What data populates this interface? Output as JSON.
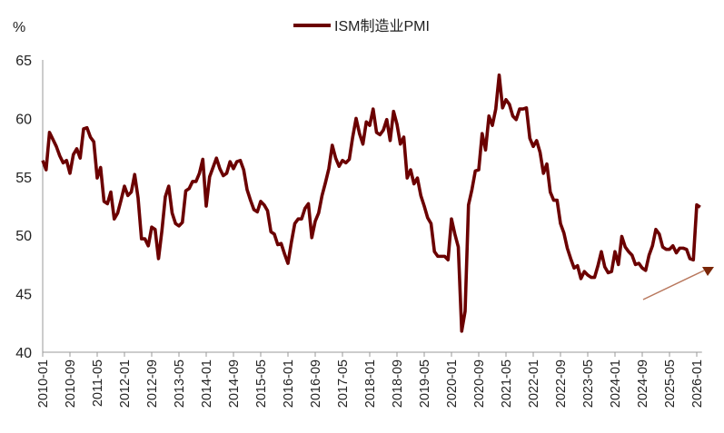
{
  "chart_data": {
    "type": "line",
    "title": "",
    "ylabel": "%",
    "xlabel": "",
    "ylim": [
      40,
      65
    ],
    "yticks": [
      "40",
      "45",
      "50",
      "55",
      "60",
      "65"
    ],
    "grid": false,
    "legend_position": "top-center",
    "xtick_labels": [
      "2010-01",
      "2010-09",
      "2011-05",
      "2012-01",
      "2012-09",
      "2013-05",
      "2014-01",
      "2014-09",
      "2015-05",
      "2016-01",
      "2016-09",
      "2017-05",
      "2018-01",
      "2018-09",
      "2019-05",
      "2020-01",
      "2020-09",
      "2021-05",
      "2022-01",
      "2022-09",
      "2023-05",
      "2024-01",
      "2024-09",
      "2025-05",
      "2026-01"
    ],
    "x": [
      "2010-01",
      "2010-02",
      "2010-03",
      "2010-04",
      "2010-05",
      "2010-06",
      "2010-07",
      "2010-08",
      "2010-09",
      "2010-10",
      "2010-11",
      "2010-12",
      "2011-01",
      "2011-02",
      "2011-03",
      "2011-04",
      "2011-05",
      "2011-06",
      "2011-07",
      "2011-08",
      "2011-09",
      "2011-10",
      "2011-11",
      "2011-12",
      "2012-01",
      "2012-02",
      "2012-03",
      "2012-04",
      "2012-05",
      "2012-06",
      "2012-07",
      "2012-08",
      "2012-09",
      "2012-10",
      "2012-11",
      "2012-12",
      "2013-01",
      "2013-02",
      "2013-03",
      "2013-04",
      "2013-05",
      "2013-06",
      "2013-07",
      "2013-08",
      "2013-09",
      "2013-10",
      "2013-11",
      "2013-12",
      "2014-01",
      "2014-02",
      "2014-03",
      "2014-04",
      "2014-05",
      "2014-06",
      "2014-07",
      "2014-08",
      "2014-09",
      "2014-10",
      "2014-11",
      "2014-12",
      "2015-01",
      "2015-02",
      "2015-03",
      "2015-04",
      "2015-05",
      "2015-06",
      "2015-07",
      "2015-08",
      "2015-09",
      "2015-10",
      "2015-11",
      "2015-12",
      "2016-01",
      "2016-02",
      "2016-03",
      "2016-04",
      "2016-05",
      "2016-06",
      "2016-07",
      "2016-08",
      "2016-09",
      "2016-10",
      "2016-11",
      "2016-12",
      "2017-01",
      "2017-02",
      "2017-03",
      "2017-04",
      "2017-05",
      "2017-06",
      "2017-07",
      "2017-08",
      "2017-09",
      "2017-10",
      "2017-11",
      "2017-12",
      "2018-01",
      "2018-02",
      "2018-03",
      "2018-04",
      "2018-05",
      "2018-06",
      "2018-07",
      "2018-08",
      "2018-09",
      "2018-10",
      "2018-11",
      "2018-12",
      "2019-01",
      "2019-02",
      "2019-03",
      "2019-04",
      "2019-05",
      "2019-06",
      "2019-07",
      "2019-08",
      "2019-09",
      "2019-10",
      "2019-11",
      "2019-12",
      "2020-01",
      "2020-02",
      "2020-03",
      "2020-04",
      "2020-05",
      "2020-06",
      "2020-07",
      "2020-08",
      "2020-09",
      "2020-10",
      "2020-11",
      "2020-12",
      "2021-01",
      "2021-02",
      "2021-03",
      "2021-04",
      "2021-05",
      "2021-06",
      "2021-07",
      "2021-08",
      "2021-09",
      "2021-10",
      "2021-11",
      "2021-12",
      "2022-01",
      "2022-02",
      "2022-03",
      "2022-04",
      "2022-05",
      "2022-06",
      "2022-07",
      "2022-08",
      "2022-09",
      "2022-10",
      "2022-11",
      "2022-12",
      "2023-01",
      "2023-02",
      "2023-03",
      "2023-04",
      "2023-05",
      "2023-06",
      "2023-07",
      "2023-08",
      "2023-09",
      "2023-10",
      "2023-11",
      "2023-12",
      "2024-01",
      "2024-02",
      "2024-03",
      "2024-04",
      "2024-05",
      "2024-06",
      "2024-07",
      "2024-08",
      "2024-09",
      "2024-10",
      "2024-11",
      "2024-12",
      "2025-01",
      "2025-02",
      "2025-03",
      "2025-04",
      "2025-05",
      "2025-06",
      "2025-07",
      "2025-08",
      "2025-09",
      "2025-10",
      "2025-11",
      "2025-12",
      "2026-01",
      "2026-02"
    ],
    "series": [
      {
        "name": "ISM制造业PMI",
        "color": "#6b0000",
        "values": [
          56.4,
          55.6,
          58.8,
          58.2,
          57.6,
          56.8,
          56.2,
          56.4,
          55.3,
          56.9,
          57.4,
          56.6,
          59.1,
          59.2,
          58.4,
          58.0,
          54.9,
          55.8,
          52.9,
          52.7,
          53.7,
          51.4,
          51.9,
          53.0,
          54.2,
          53.4,
          53.7,
          55.2,
          53.2,
          49.7,
          49.7,
          49.1,
          50.7,
          50.5,
          48.0,
          50.4,
          53.3,
          54.2,
          51.9,
          51.0,
          50.8,
          51.1,
          53.8,
          54.0,
          54.6,
          54.6,
          55.3,
          56.5,
          52.5,
          55.0,
          55.8,
          56.6,
          55.7,
          55.1,
          55.3,
          56.3,
          55.7,
          56.3,
          56.4,
          55.6,
          53.9,
          53.0,
          52.2,
          52.0,
          52.9,
          52.6,
          52.1,
          50.3,
          50.1,
          49.2,
          49.3,
          48.4,
          47.6,
          49.4,
          51.0,
          51.4,
          51.4,
          52.3,
          52.7,
          49.8,
          51.2,
          51.9,
          53.4,
          54.5,
          55.7,
          57.7,
          56.6,
          55.9,
          56.4,
          56.2,
          56.5,
          58.4,
          60.0,
          58.7,
          57.8,
          59.7,
          59.4,
          60.8,
          58.8,
          58.6,
          59.0,
          59.9,
          58.1,
          60.6,
          59.5,
          57.8,
          58.4,
          54.9,
          55.6,
          54.4,
          54.9,
          53.4,
          52.5,
          51.5,
          51.0,
          48.6,
          48.2,
          48.2,
          48.2,
          47.9,
          51.4,
          50.1,
          49.0,
          41.8,
          43.5,
          52.6,
          53.9,
          55.5,
          55.6,
          58.7,
          57.3,
          60.2,
          59.4,
          60.8,
          63.7,
          60.9,
          61.6,
          61.2,
          60.2,
          59.9,
          60.8,
          60.8,
          60.9,
          58.3,
          57.6,
          58.1,
          57.1,
          55.3,
          56.1,
          53.7,
          53.0,
          53.0,
          51.0,
          50.2,
          48.9,
          48.0,
          47.2,
          47.4,
          46.3,
          46.9,
          46.6,
          46.4,
          46.4,
          47.4,
          48.6,
          47.3,
          46.8,
          46.9,
          48.6,
          47.5,
          49.9,
          49.0,
          48.6,
          48.3,
          47.5,
          47.6,
          47.2,
          47.0,
          48.3,
          49.1,
          50.5,
          50.1,
          49.0,
          48.8,
          48.8,
          49.1,
          48.5,
          48.9,
          48.9,
          48.8,
          48.0,
          47.9,
          52.6,
          52.4
        ]
      }
    ],
    "annotations": [
      {
        "type": "arrow",
        "direction": "up-right",
        "line_color": "#b8775c",
        "head_color": "#7a2608"
      }
    ]
  }
}
